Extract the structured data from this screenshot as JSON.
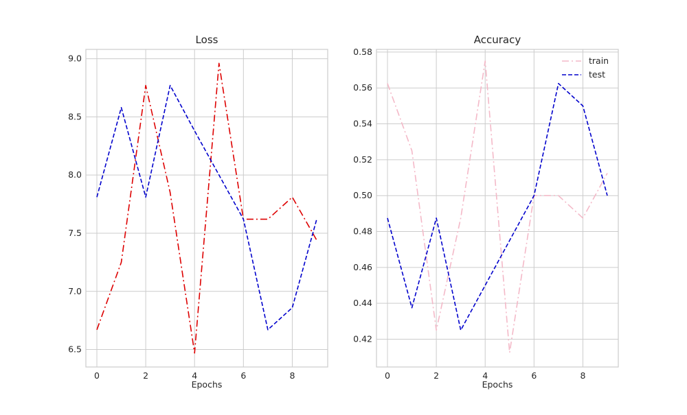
{
  "chart_data": [
    {
      "type": "line",
      "title": "Loss",
      "xlabel": "Epochs",
      "ylabel": "",
      "xlim": [
        -0.45,
        9.45
      ],
      "ylim": [
        6.35,
        9.08
      ],
      "x": [
        0,
        1,
        2,
        3,
        4,
        5,
        6,
        7,
        8,
        9
      ],
      "xticks": [
        0,
        2,
        4,
        6,
        8
      ],
      "xtick_labels": [
        "0",
        "2",
        "4",
        "6",
        "8"
      ],
      "yticks": [
        6.5,
        7.0,
        7.5,
        8.0,
        8.5,
        9.0
      ],
      "ytick_labels": [
        "6.5",
        "7.0",
        "7.5",
        "8.0",
        "8.5",
        "9.0"
      ],
      "grid": true,
      "legend": null,
      "series": [
        {
          "values": [
            6.67,
            7.25,
            8.77,
            7.85,
            6.47,
            8.96,
            7.62,
            7.62,
            7.81,
            7.44
          ],
          "color": "#dd0000",
          "linestyle": "dashdot"
        },
        {
          "values": [
            7.81,
            8.58,
            7.81,
            8.77,
            8.38,
            8.0,
            7.62,
            6.67,
            6.86,
            7.62
          ],
          "color": "#0000cc",
          "linestyle": "dashed"
        }
      ]
    },
    {
      "type": "line",
      "title": "Accuracy",
      "xlabel": "Epochs",
      "ylabel": "",
      "xlim": [
        -0.45,
        9.45
      ],
      "ylim": [
        0.4045,
        0.5815
      ],
      "x": [
        0,
        1,
        2,
        3,
        4,
        5,
        6,
        7,
        8,
        9
      ],
      "xticks": [
        0,
        2,
        4,
        6,
        8
      ],
      "xtick_labels": [
        "0",
        "2",
        "4",
        "6",
        "8"
      ],
      "yticks": [
        0.42,
        0.44,
        0.46,
        0.48,
        0.5,
        0.52,
        0.54,
        0.56,
        0.58
      ],
      "ytick_labels": [
        "0.42",
        "0.44",
        "0.46",
        "0.48",
        "0.50",
        "0.52",
        "0.54",
        "0.56",
        "0.58"
      ],
      "grid": true,
      "legend": "top-right",
      "series": [
        {
          "name": "train",
          "values": [
            0.5625,
            0.525,
            0.425,
            0.4875,
            0.575,
            0.4125,
            0.5,
            0.5,
            0.4875,
            0.5125
          ],
          "color": "#f4b9c8",
          "linestyle": "dashdot"
        },
        {
          "name": "test",
          "values": [
            0.4875,
            0.4375,
            0.4875,
            0.425,
            0.45,
            0.475,
            0.5,
            0.5625,
            0.55,
            0.5
          ],
          "color": "#0000cc",
          "linestyle": "dashed"
        }
      ]
    }
  ]
}
